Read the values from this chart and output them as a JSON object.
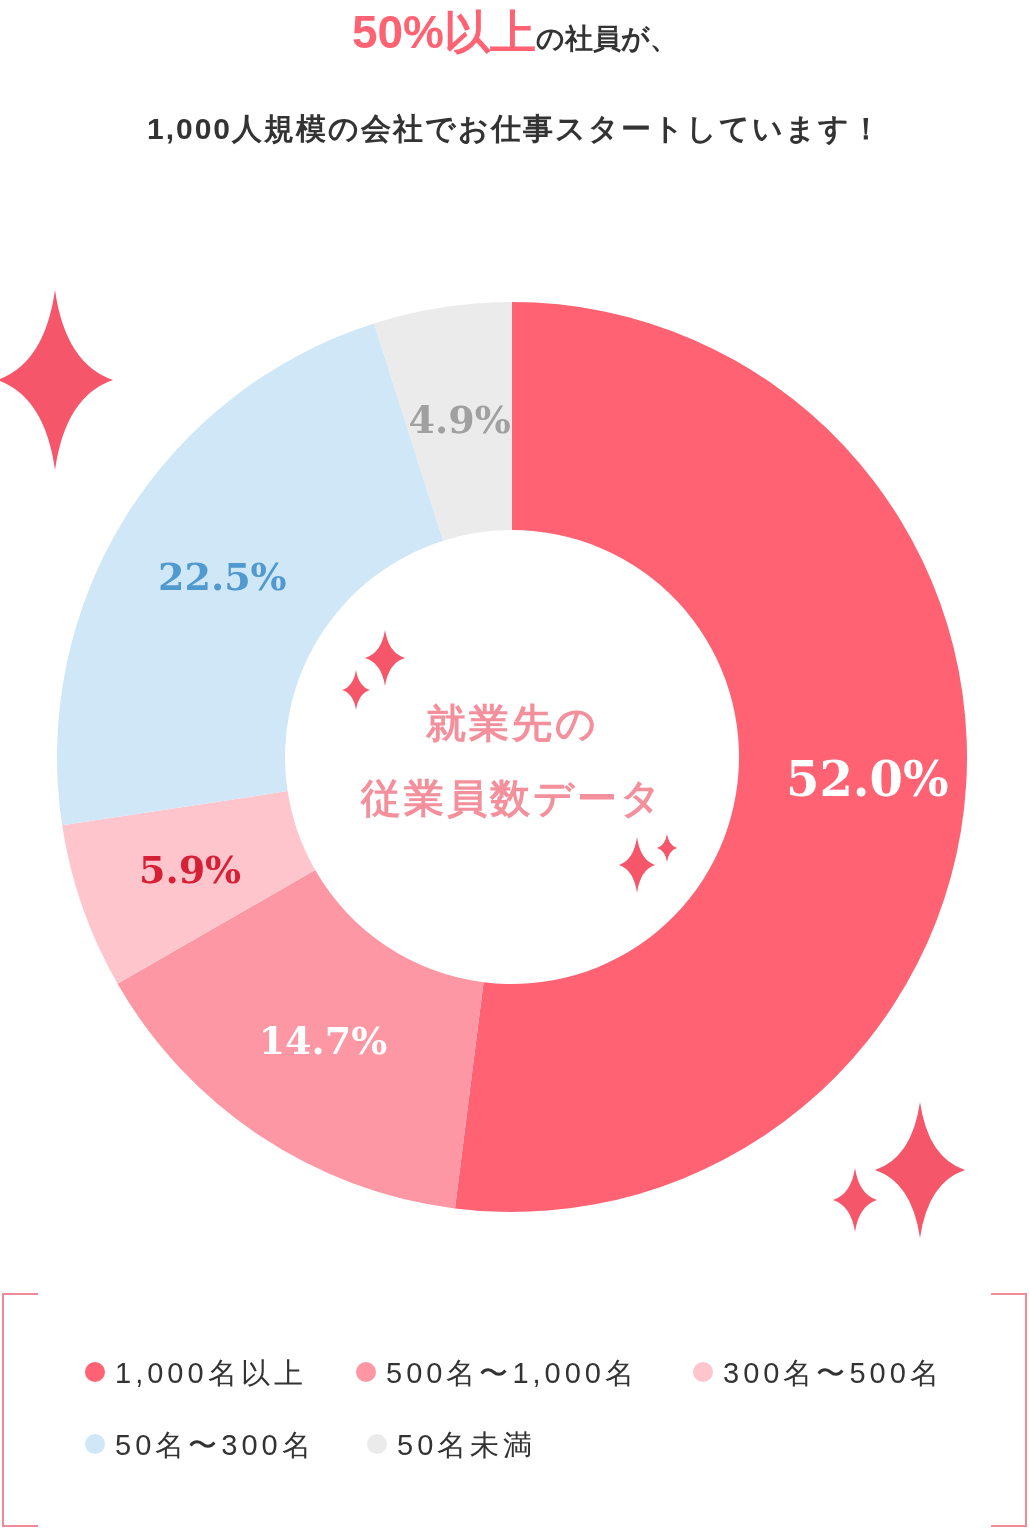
{
  "chart_data": {
    "type": "donut",
    "title": "**50%以上**の社員が、",
    "subtitle": "1,000人規模の会社でお仕事スタートしています！",
    "categories": [
      "1,000名以上",
      "500名〜1,000名",
      "300名〜500名",
      "50名〜300名",
      "50名未満"
    ],
    "values": [
      52.0,
      14.7,
      5.9,
      22.5,
      4.9
    ],
    "colors": [
      "#fe6273",
      "#fd97a3",
      "#fec5cc",
      "#d0e7f8",
      "#ebebeb"
    ],
    "value_labels": [
      "52.0%",
      "14.7%",
      "5.9%",
      "22.5%",
      "4.9%"
    ],
    "annotations": [
      "就業先の",
      "従業員数データ"
    ],
    "legend": "bottom"
  }
}
